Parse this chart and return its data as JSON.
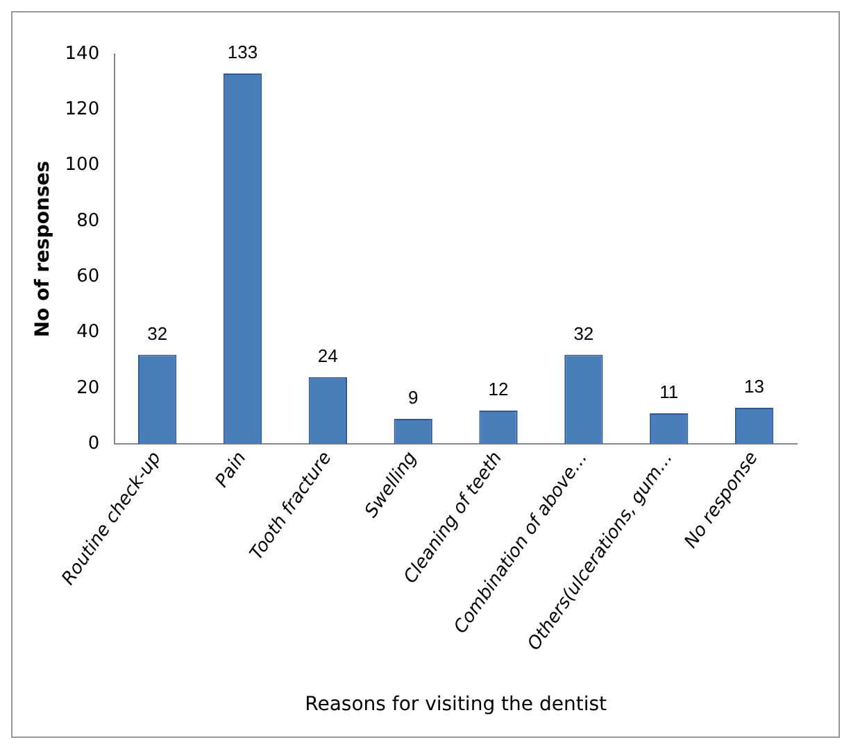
{
  "chart_data": {
    "type": "bar",
    "xlabel": "Reasons for visiting the dentist",
    "ylabel": "No of responses",
    "categories": [
      "Routine check-up",
      "Pain",
      "Tooth fracture",
      "Swelling",
      "Cleaning of teeth",
      "Combination of above…",
      "Others(ulcerations, gum…",
      "No response"
    ],
    "values": [
      32,
      133,
      24,
      9,
      12,
      32,
      11,
      13
    ],
    "color": "#4a7ebb",
    "ylim": [
      0,
      140
    ],
    "yticks": [
      0,
      20,
      40,
      60,
      80,
      100,
      120,
      140
    ],
    "grid": false,
    "data_labels": true
  }
}
